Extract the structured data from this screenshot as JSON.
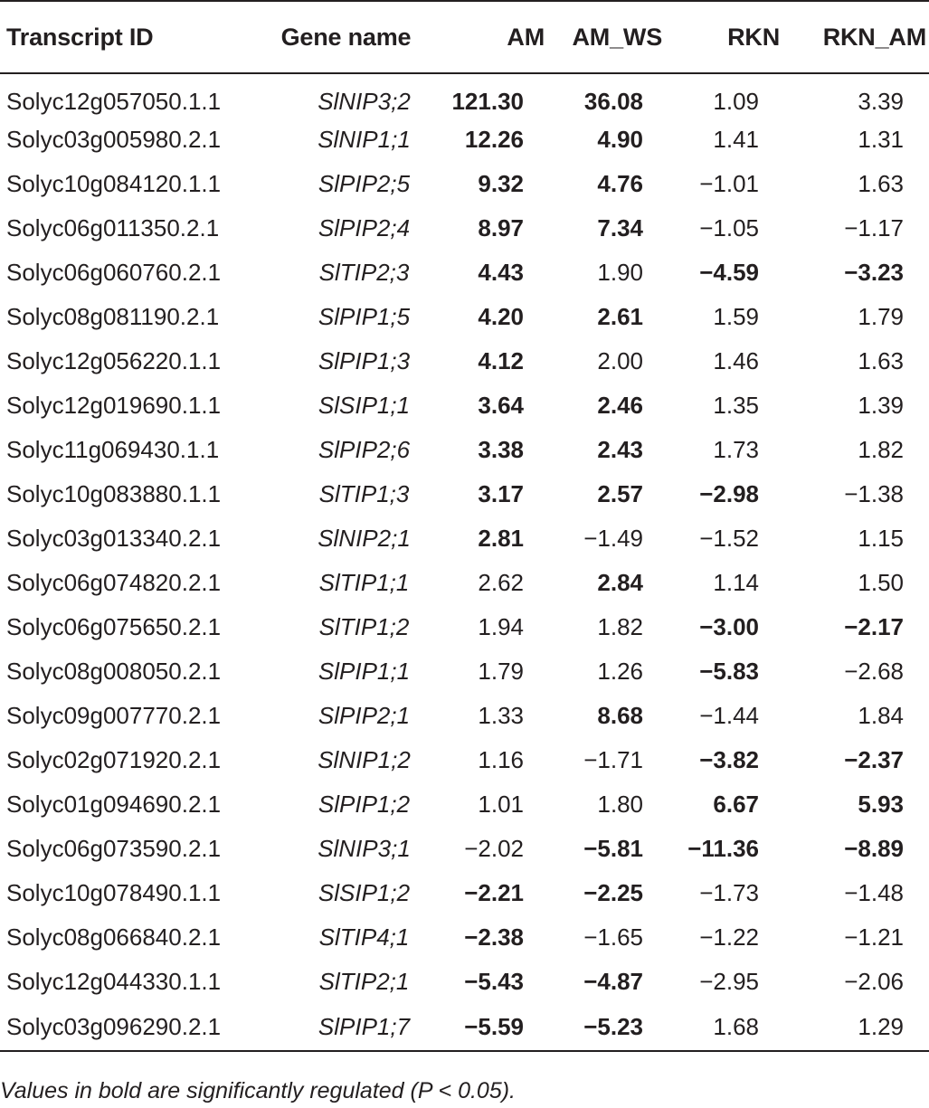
{
  "table": {
    "headers": {
      "transcript_id": "Transcript ID",
      "gene_name": "Gene name",
      "am": "AM",
      "am_ws": "AM_WS",
      "rkn": "RKN",
      "rkn_am": "RKN_AM"
    },
    "rows": [
      {
        "tid": "Solyc12g057050.1.1",
        "gene": "SlNIP3;2",
        "am": "121.30",
        "am_b": true,
        "amws": "36.08",
        "amws_b": true,
        "rkn": "1.09",
        "rkn_b": false,
        "rknam": "3.39",
        "rknam_b": false
      },
      {
        "tid": "Solyc03g005980.2.1",
        "gene": "SlNIP1;1",
        "am": "12.26",
        "am_b": true,
        "amws": "4.90",
        "amws_b": true,
        "rkn": "1.41",
        "rkn_b": false,
        "rknam": "1.31",
        "rknam_b": false
      },
      {
        "tid": "Solyc10g084120.1.1",
        "gene": "SlPIP2;5",
        "am": "9.32",
        "am_b": true,
        "amws": "4.76",
        "amws_b": true,
        "rkn": "−1.01",
        "rkn_b": false,
        "rknam": "1.63",
        "rknam_b": false
      },
      {
        "tid": "Solyc06g011350.2.1",
        "gene": "SlPIP2;4",
        "am": "8.97",
        "am_b": true,
        "amws": "7.34",
        "amws_b": true,
        "rkn": "−1.05",
        "rkn_b": false,
        "rknam": "−1.17",
        "rknam_b": false
      },
      {
        "tid": "Solyc06g060760.2.1",
        "gene": "SlTIP2;3",
        "am": "4.43",
        "am_b": true,
        "amws": "1.90",
        "amws_b": false,
        "rkn": "−4.59",
        "rkn_b": true,
        "rknam": "−3.23",
        "rknam_b": true
      },
      {
        "tid": "Solyc08g081190.2.1",
        "gene": "SlPIP1;5",
        "am": "4.20",
        "am_b": true,
        "amws": "2.61",
        "amws_b": true,
        "rkn": "1.59",
        "rkn_b": false,
        "rknam": "1.79",
        "rknam_b": false
      },
      {
        "tid": "Solyc12g056220.1.1",
        "gene": "SlPIP1;3",
        "am": "4.12",
        "am_b": true,
        "amws": "2.00",
        "amws_b": false,
        "rkn": "1.46",
        "rkn_b": false,
        "rknam": "1.63",
        "rknam_b": false
      },
      {
        "tid": "Solyc12g019690.1.1",
        "gene": "SlSIP1;1",
        "am": "3.64",
        "am_b": true,
        "amws": "2.46",
        "amws_b": true,
        "rkn": "1.35",
        "rkn_b": false,
        "rknam": "1.39",
        "rknam_b": false
      },
      {
        "tid": "Solyc11g069430.1.1",
        "gene": "SlPIP2;6",
        "am": "3.38",
        "am_b": true,
        "amws": "2.43",
        "amws_b": true,
        "rkn": "1.73",
        "rkn_b": false,
        "rknam": "1.82",
        "rknam_b": false
      },
      {
        "tid": "Solyc10g083880.1.1",
        "gene": "SlTIP1;3",
        "am": "3.17",
        "am_b": true,
        "amws": "2.57",
        "amws_b": true,
        "rkn": "−2.98",
        "rkn_b": true,
        "rknam": "−1.38",
        "rknam_b": false
      },
      {
        "tid": "Solyc03g013340.2.1",
        "gene": "SlNIP2;1",
        "am": "2.81",
        "am_b": true,
        "amws": "−1.49",
        "amws_b": false,
        "rkn": "−1.52",
        "rkn_b": false,
        "rknam": "1.15",
        "rknam_b": false
      },
      {
        "tid": "Solyc06g074820.2.1",
        "gene": "SlTIP1;1",
        "am": "2.62",
        "am_b": false,
        "amws": "2.84",
        "amws_b": true,
        "rkn": "1.14",
        "rkn_b": false,
        "rknam": "1.50",
        "rknam_b": false
      },
      {
        "tid": "Solyc06g075650.2.1",
        "gene": "SlTIP1;2",
        "am": "1.94",
        "am_b": false,
        "amws": "1.82",
        "amws_b": false,
        "rkn": "−3.00",
        "rkn_b": true,
        "rknam": "−2.17",
        "rknam_b": true
      },
      {
        "tid": "Solyc08g008050.2.1",
        "gene": "SlPIP1;1",
        "am": "1.79",
        "am_b": false,
        "amws": "1.26",
        "amws_b": false,
        "rkn": "−5.83",
        "rkn_b": true,
        "rknam": "−2.68",
        "rknam_b": false
      },
      {
        "tid": "Solyc09g007770.2.1",
        "gene": "SlPIP2;1",
        "am": "1.33",
        "am_b": false,
        "amws": "8.68",
        "amws_b": true,
        "rkn": "−1.44",
        "rkn_b": false,
        "rknam": "1.84",
        "rknam_b": false
      },
      {
        "tid": "Solyc02g071920.2.1",
        "gene": "SlNIP1;2",
        "am": "1.16",
        "am_b": false,
        "amws": "−1.71",
        "amws_b": false,
        "rkn": "−3.82",
        "rkn_b": true,
        "rknam": "−2.37",
        "rknam_b": true
      },
      {
        "tid": "Solyc01g094690.2.1",
        "gene": "SlPIP1;2",
        "am": "1.01",
        "am_b": false,
        "amws": "1.80",
        "amws_b": false,
        "rkn": "6.67",
        "rkn_b": true,
        "rknam": "5.93",
        "rknam_b": true
      },
      {
        "tid": "Solyc06g073590.2.1",
        "gene": "SlNIP3;1",
        "am": "−2.02",
        "am_b": false,
        "amws": "−5.81",
        "amws_b": true,
        "rkn": "−11.36",
        "rkn_b": true,
        "rknam": "−8.89",
        "rknam_b": true
      },
      {
        "tid": "Solyc10g078490.1.1",
        "gene": "SlSIP1;2",
        "am": "−2.21",
        "am_b": true,
        "amws": "−2.25",
        "amws_b": true,
        "rkn": "−1.73",
        "rkn_b": false,
        "rknam": "−1.48",
        "rknam_b": false
      },
      {
        "tid": "Solyc08g066840.2.1",
        "gene": "SlTIP4;1",
        "am": "−2.38",
        "am_b": true,
        "amws": "−1.65",
        "amws_b": false,
        "rkn": "−1.22",
        "rkn_b": false,
        "rknam": "−1.21",
        "rknam_b": false
      },
      {
        "tid": "Solyc12g044330.1.1",
        "gene": "SlTIP2;1",
        "am": "−5.43",
        "am_b": true,
        "amws": "−4.87",
        "amws_b": true,
        "rkn": "−2.95",
        "rkn_b": false,
        "rknam": "−2.06",
        "rknam_b": false
      },
      {
        "tid": "Solyc03g096290.2.1",
        "gene": "SlPIP1;7",
        "am": "−5.59",
        "am_b": true,
        "amws": "−5.23",
        "amws_b": true,
        "rkn": "1.68",
        "rkn_b": false,
        "rknam": "1.29",
        "rknam_b": false
      }
    ]
  },
  "footnote": "Values in bold are significantly regulated (P < 0.05)."
}
